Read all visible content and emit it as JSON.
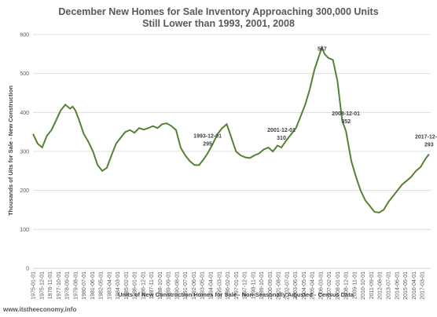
{
  "chart_data": {
    "type": "line",
    "title": "December New Homes for Sale Inventory Approaching 300,000 Units",
    "subtitle": "Still Lower than 1993, 2001, 2008",
    "xlabel": "Units of New Construction Homes for Sale - Non-Seasonally Adjusted - Census Data",
    "ylabel": "Thousands of Uits for Sale - New Construction",
    "ylim": [
      0,
      600
    ],
    "yticks": [
      "0",
      "100",
      "200",
      "300",
      "400",
      "500",
      "600"
    ],
    "xtick_labels": [
      "1975-01-01",
      "1975-12-01",
      "1976-11-01",
      "1977-10-01",
      "1978-09-01",
      "1979-08-01",
      "1980-07-01",
      "1981-06-01",
      "1982-05-01",
      "1983-04-01",
      "1984-03-01",
      "1985-02-01",
      "1986-01-01",
      "1986-12-01",
      "1987-11-01",
      "1988-10-01",
      "1989-09-01",
      "1990-08-01",
      "1991-07-01",
      "1992-06-01",
      "1993-05-01",
      "1994-04-01",
      "1995-03-01",
      "1996-02-01",
      "1997-01-01",
      "1997-12-01",
      "1998-11-01",
      "1999-10-01",
      "2000-09-01",
      "2001-08-01",
      "2002-07-01",
      "2003-06-01",
      "2004-05-01",
      "2005-04-01",
      "2006-03-01",
      "2007-02-01",
      "2008-01-01",
      "2008-12-01",
      "2009-11-01",
      "2010-10-01",
      "2011-09-01",
      "2012-08-01",
      "2013-07-01",
      "2014-06-01",
      "2015-05-01",
      "2016-04-01",
      "2017-03-01"
    ],
    "grid": true,
    "line_color": "#548235",
    "series": [
      {
        "x": [
          1975.0,
          1975.5,
          1976.0,
          1976.5,
          1977.0,
          1977.5,
          1978.0,
          1978.5,
          1979.0,
          1979.3,
          1979.6,
          1980.0,
          1980.5,
          1981.0,
          1981.5,
          1982.0,
          1982.5,
          1983.0,
          1983.5,
          1984.0,
          1984.5,
          1985.0,
          1985.5,
          1986.0,
          1986.5,
          1987.0,
          1987.5,
          1988.0,
          1988.5,
          1989.0,
          1989.5,
          1990.0,
          1990.5,
          1991.0,
          1991.5,
          1992.0,
          1992.5,
          1993.0,
          1993.5,
          1993.92,
          1994.5,
          1995.0,
          1995.5,
          1996.0,
          1996.5,
          1997.0,
          1997.5,
          1998.0,
          1998.5,
          1999.0,
          1999.5,
          2000.0,
          2000.5,
          2001.0,
          2001.5,
          2001.92,
          2002.5,
          2003.0,
          2003.5,
          2004.0,
          2004.5,
          2005.0,
          2005.5,
          2006.0,
          2006.3,
          2006.6,
          2007.0,
          2007.5,
          2008.0,
          2008.5,
          2008.92,
          2009.5,
          2010.0,
          2010.5,
          2011.0,
          2011.5,
          2012.0,
          2012.5,
          2013.0,
          2013.5,
          2014.0,
          2014.5,
          2015.0,
          2015.5,
          2016.0,
          2016.5,
          2017.0,
          2017.5,
          2017.92
        ],
        "y": [
          345,
          320,
          310,
          340,
          355,
          380,
          405,
          420,
          410,
          415,
          405,
          380,
          345,
          325,
          300,
          265,
          250,
          258,
          290,
          320,
          335,
          350,
          355,
          348,
          360,
          356,
          360,
          365,
          360,
          370,
          372,
          365,
          355,
          310,
          290,
          275,
          265,
          265,
          280,
          295,
          320,
          345,
          360,
          370,
          335,
          300,
          290,
          285,
          283,
          290,
          295,
          305,
          310,
          300,
          315,
          310,
          330,
          345,
          360,
          390,
          420,
          460,
          510,
          545,
          567,
          550,
          540,
          535,
          480,
          380,
          352,
          275,
          235,
          200,
          175,
          160,
          145,
          143,
          150,
          170,
          185,
          200,
          215,
          225,
          235,
          250,
          260,
          280,
          293
        ]
      }
    ],
    "annotations": [
      {
        "date": "1993-12-01",
        "value": "295"
      },
      {
        "date": "2001-12-01",
        "value": "310"
      },
      {
        "date": "2006-05-01",
        "value": "567",
        "label": "567"
      },
      {
        "date": "2008-12-01",
        "value": "352"
      },
      {
        "date": "2017-12-01",
        "value": "293"
      }
    ]
  },
  "footer": "www.itstheeconomy.info"
}
